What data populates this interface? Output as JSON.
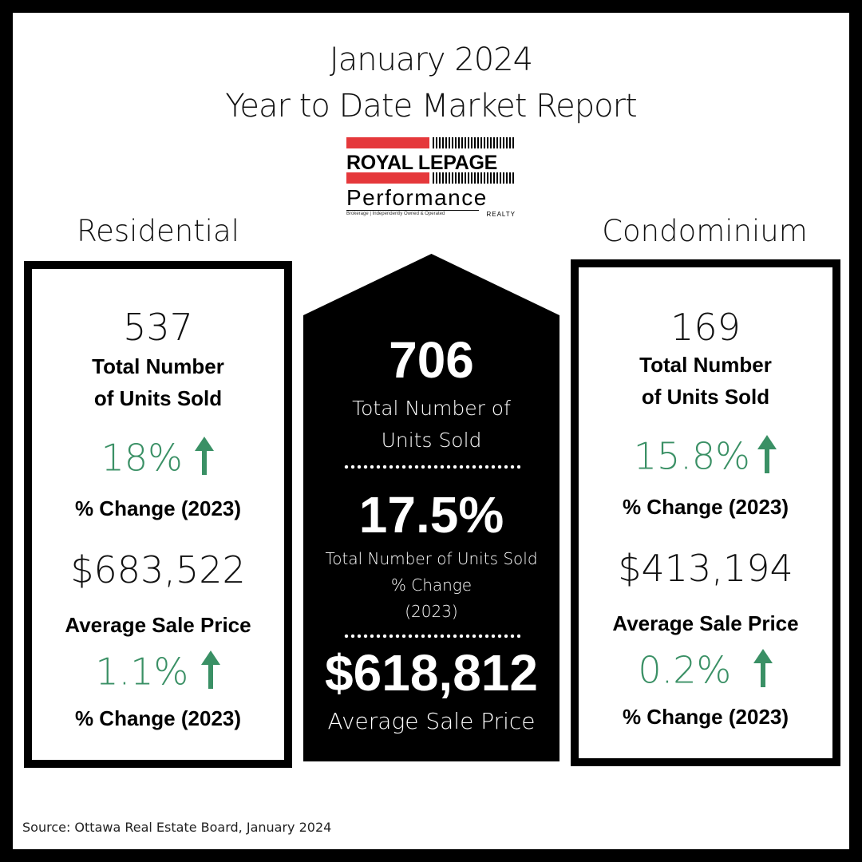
{
  "header": {
    "title_line1": "January 2024",
    "title_line2": "Year to Date Market Report"
  },
  "logo": {
    "brand": "ROYAL LEPAGE",
    "subbrand": "Performance",
    "realty": "REALTY",
    "tagline": "Brokerage | Independently Owned & Operated",
    "colors": {
      "red": "#e5383b",
      "black": "#000000"
    }
  },
  "residential": {
    "heading": "Residential",
    "units": "537",
    "units_label_1": "Total Number",
    "units_label_2": "of Units Sold",
    "units_change": "18%",
    "units_change_label": "% Change (2023)",
    "avg_price": "$683,522",
    "avg_price_label": "Average Sale Price",
    "price_change": "1.1%",
    "price_change_label": "% Change (2023)"
  },
  "total": {
    "units": "706",
    "units_label_1": "Total Number of",
    "units_label_2": "Units Sold",
    "change": "17.5%",
    "change_label_1": "Total Number of Units Sold",
    "change_label_2": "% Change",
    "change_label_3": "(2023)",
    "avg_price": "$618,812",
    "avg_price_label": "Average Sale Price"
  },
  "condominium": {
    "heading": "Condominium",
    "units": "169",
    "units_label_1": "Total Number",
    "units_label_2": "of Units Sold",
    "units_change": "15.8%",
    "units_change_label": "% Change (2023)",
    "avg_price": "$413,194",
    "avg_price_label": "Average Sale Price",
    "price_change": "0.2%",
    "price_change_label": "% Change (2023)"
  },
  "icons": {
    "up_arrow": "arrow-up-icon"
  },
  "colors": {
    "positive_green": "#3a9065",
    "frame": "#000000"
  },
  "footer": {
    "source": "Source: Ottawa Real Estate Board, January 2024"
  }
}
